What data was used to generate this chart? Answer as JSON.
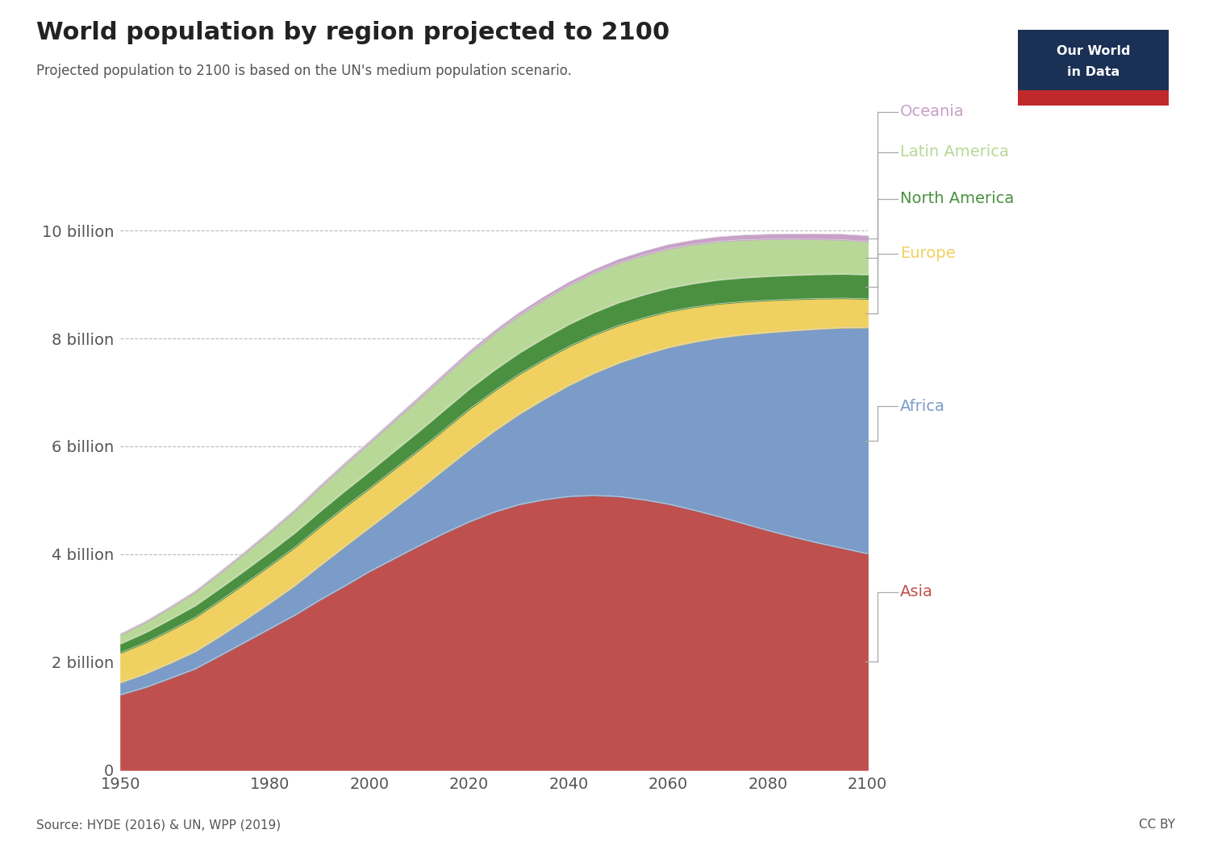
{
  "title": "World population by region projected to 2100",
  "subtitle": "Projected population to 2100 is based on the UN's medium population scenario.",
  "source": "Source: HYDE (2016) & UN, WPP (2019)",
  "cc": "CC BY",
  "years": [
    1950,
    1955,
    1960,
    1965,
    1970,
    1975,
    1980,
    1985,
    1990,
    1995,
    2000,
    2005,
    2010,
    2015,
    2020,
    2025,
    2030,
    2035,
    2040,
    2045,
    2050,
    2055,
    2060,
    2065,
    2070,
    2075,
    2080,
    2085,
    2090,
    2095,
    2100
  ],
  "asia": [
    1.395,
    1.53,
    1.7,
    1.875,
    2.12,
    2.37,
    2.62,
    2.87,
    3.15,
    3.41,
    3.68,
    3.92,
    4.16,
    4.39,
    4.6,
    4.78,
    4.92,
    5.01,
    5.07,
    5.09,
    5.07,
    5.01,
    4.93,
    4.82,
    4.7,
    4.57,
    4.44,
    4.32,
    4.21,
    4.11,
    4.01
  ],
  "africa": [
    0.228,
    0.257,
    0.285,
    0.322,
    0.364,
    0.416,
    0.478,
    0.554,
    0.639,
    0.736,
    0.818,
    0.93,
    1.044,
    1.186,
    1.341,
    1.504,
    1.679,
    1.866,
    2.063,
    2.267,
    2.478,
    2.692,
    2.906,
    3.115,
    3.314,
    3.501,
    3.673,
    3.829,
    3.969,
    4.091,
    4.195
  ],
  "europe": [
    0.549,
    0.576,
    0.605,
    0.634,
    0.657,
    0.675,
    0.693,
    0.706,
    0.721,
    0.728,
    0.726,
    0.731,
    0.735,
    0.738,
    0.748,
    0.745,
    0.739,
    0.73,
    0.72,
    0.708,
    0.695,
    0.68,
    0.664,
    0.647,
    0.63,
    0.612,
    0.595,
    0.578,
    0.562,
    0.547,
    0.53
  ],
  "north_america": [
    0.172,
    0.187,
    0.204,
    0.219,
    0.231,
    0.243,
    0.256,
    0.269,
    0.283,
    0.299,
    0.315,
    0.332,
    0.349,
    0.362,
    0.374,
    0.384,
    0.394,
    0.403,
    0.411,
    0.418,
    0.425,
    0.43,
    0.435,
    0.439,
    0.443,
    0.445,
    0.447,
    0.448,
    0.449,
    0.45,
    0.45
  ],
  "latin_america": [
    0.168,
    0.191,
    0.218,
    0.25,
    0.285,
    0.323,
    0.362,
    0.404,
    0.445,
    0.487,
    0.527,
    0.565,
    0.599,
    0.63,
    0.655,
    0.677,
    0.695,
    0.71,
    0.721,
    0.729,
    0.733,
    0.733,
    0.73,
    0.724,
    0.714,
    0.701,
    0.686,
    0.669,
    0.651,
    0.633,
    0.613
  ],
  "oceania": [
    0.013,
    0.015,
    0.016,
    0.018,
    0.02,
    0.022,
    0.023,
    0.025,
    0.027,
    0.029,
    0.031,
    0.033,
    0.036,
    0.039,
    0.042,
    0.046,
    0.049,
    0.053,
    0.057,
    0.061,
    0.065,
    0.069,
    0.073,
    0.077,
    0.081,
    0.085,
    0.089,
    0.093,
    0.097,
    0.1,
    0.104
  ],
  "colors": {
    "asia": "#c0504d",
    "africa": "#7b9cc8",
    "europe": "#f0d060",
    "north_america": "#4a9040",
    "latin_america": "#b8d898",
    "oceania": "#c8a0c8"
  },
  "logo_bg": "#1a3055",
  "logo_red": "#c0292b",
  "ylim_max": 12000000000,
  "yticks": [
    0,
    2000000000,
    4000000000,
    6000000000,
    8000000000,
    10000000000
  ],
  "ytick_labels": [
    "0",
    "2 billion",
    "4 billion",
    "6 billion",
    "8 billion",
    "10 billion"
  ],
  "xticks": [
    1950,
    1980,
    2000,
    2020,
    2040,
    2060,
    2080,
    2100
  ],
  "bg_color": "#ffffff",
  "title_color": "#222222",
  "subtitle_color": "#555555",
  "tick_color": "#555555",
  "grid_color": "#bbbbbb",
  "connector_color": "#aaaaaa",
  "legend_entries": [
    {
      "label": "Oceania",
      "color": "#c8a0c8",
      "region": "oceania"
    },
    {
      "label": "Latin America",
      "color": "#b8d898",
      "region": "latin_america"
    },
    {
      "label": "North America",
      "color": "#4a9040",
      "region": "north_america"
    },
    {
      "label": "Europe",
      "color": "#f0d060",
      "region": "europe"
    },
    {
      "label": "Africa",
      "color": "#7b9cc8",
      "region": "africa"
    },
    {
      "label": "Asia",
      "color": "#c0504d",
      "region": "asia"
    }
  ]
}
